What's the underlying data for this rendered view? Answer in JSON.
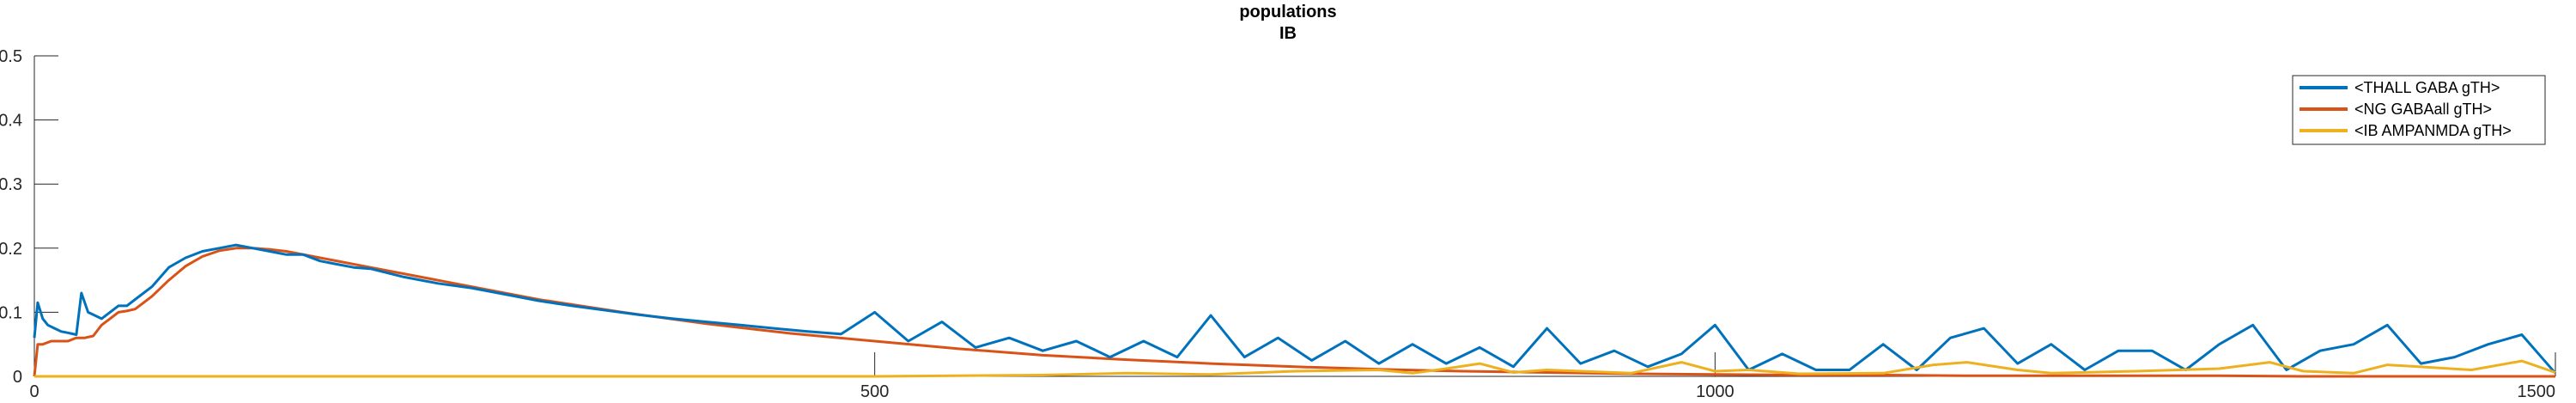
{
  "chart_data": {
    "type": "line",
    "title": "populations",
    "subtitle": "IB",
    "xlabel": "",
    "ylabel": "",
    "xlim": [
      0,
      1500
    ],
    "ylim": [
      0,
      0.5
    ],
    "x_ticks": [
      0,
      500,
      1000,
      1500
    ],
    "y_ticks": [
      0,
      0.1,
      0.2,
      0.3,
      0.4,
      0.5
    ],
    "x_tick_labels": [
      "0",
      "500",
      "1000",
      "1500"
    ],
    "y_tick_labels": [
      "0",
      "0.1",
      "0.2",
      "0.3",
      "0.4",
      "0.5"
    ],
    "grid": false,
    "legend_position": "top-right",
    "series": [
      {
        "name": "<THALL GABA gTH>",
        "color": "#0072BD",
        "x": [
          0,
          2,
          5,
          8,
          12,
          16,
          20,
          25,
          28,
          32,
          36,
          40,
          45,
          50,
          55,
          60,
          70,
          80,
          90,
          100,
          110,
          120,
          130,
          140,
          150,
          160,
          170,
          180,
          190,
          200,
          220,
          240,
          260,
          280,
          300,
          320,
          340,
          360,
          380,
          400,
          420,
          440,
          460,
          480,
          500,
          520,
          540,
          560,
          580,
          600,
          620,
          640,
          660,
          680,
          700,
          720,
          740,
          760,
          780,
          800,
          820,
          840,
          860,
          880,
          900,
          920,
          940,
          960,
          980,
          1000,
          1020,
          1040,
          1060,
          1080,
          1100,
          1120,
          1140,
          1160,
          1180,
          1200,
          1220,
          1240,
          1260,
          1280,
          1300,
          1320,
          1340,
          1360,
          1380,
          1400,
          1420,
          1440,
          1460,
          1480,
          1500
        ],
        "values": [
          0.06,
          0.115,
          0.09,
          0.08,
          0.075,
          0.07,
          0.068,
          0.065,
          0.13,
          0.1,
          0.095,
          0.09,
          0.1,
          0.11,
          0.11,
          0.12,
          0.14,
          0.17,
          0.185,
          0.195,
          0.2,
          0.205,
          0.2,
          0.195,
          0.19,
          0.19,
          0.18,
          0.175,
          0.17,
          0.168,
          0.155,
          0.145,
          0.138,
          0.128,
          0.118,
          0.11,
          0.103,
          0.096,
          0.09,
          0.085,
          0.08,
          0.075,
          0.07,
          0.066,
          0.1,
          0.055,
          0.085,
          0.045,
          0.06,
          0.04,
          0.055,
          0.03,
          0.055,
          0.03,
          0.095,
          0.03,
          0.06,
          0.025,
          0.055,
          0.02,
          0.05,
          0.02,
          0.045,
          0.015,
          0.075,
          0.02,
          0.04,
          0.015,
          0.035,
          0.08,
          0.01,
          0.035,
          0.01,
          0.01,
          0.05,
          0.01,
          0.06,
          0.075,
          0.02,
          0.05,
          0.01,
          0.04,
          0.04,
          0.01,
          0.05,
          0.08,
          0.01,
          0.04,
          0.05,
          0.08,
          0.02,
          0.03,
          0.05,
          0.065,
          0.005
        ]
      },
      {
        "name": "<NG GABAall gTH>",
        "color": "#D95319",
        "x": [
          0,
          2,
          5,
          10,
          15,
          20,
          25,
          30,
          35,
          40,
          45,
          50,
          55,
          60,
          70,
          80,
          90,
          100,
          110,
          120,
          130,
          140,
          150,
          170,
          200,
          250,
          300,
          350,
          400,
          450,
          500,
          550,
          600,
          650,
          700,
          750,
          800,
          850,
          900,
          950,
          1000,
          1050,
          1100,
          1150,
          1200,
          1250,
          1300,
          1350,
          1400,
          1450,
          1500
        ],
        "values": [
          0.0,
          0.05,
          0.05,
          0.055,
          0.055,
          0.055,
          0.06,
          0.06,
          0.063,
          0.08,
          0.09,
          0.1,
          0.102,
          0.105,
          0.125,
          0.15,
          0.172,
          0.187,
          0.196,
          0.2,
          0.2,
          0.198,
          0.195,
          0.185,
          0.17,
          0.145,
          0.12,
          0.1,
          0.082,
          0.067,
          0.055,
          0.043,
          0.033,
          0.026,
          0.02,
          0.015,
          0.011,
          0.008,
          0.006,
          0.004,
          0.003,
          0.002,
          0.002,
          0.001,
          0.001,
          0.001,
          0.001,
          0.0,
          0.0,
          0.0,
          0.0
        ]
      },
      {
        "name": "<IB AMPANMDA gTH>",
        "color": "#EDB120",
        "x": [
          0,
          50,
          100,
          200,
          300,
          400,
          500,
          600,
          650,
          700,
          750,
          800,
          820,
          840,
          860,
          880,
          900,
          950,
          980,
          1000,
          1020,
          1050,
          1100,
          1130,
          1150,
          1180,
          1200,
          1250,
          1300,
          1330,
          1350,
          1380,
          1400,
          1450,
          1480,
          1500
        ],
        "values": [
          0.0,
          0.0,
          0.0,
          0.0,
          0.0,
          0.0,
          0.0,
          0.002,
          0.005,
          0.003,
          0.008,
          0.01,
          0.005,
          0.012,
          0.02,
          0.006,
          0.01,
          0.005,
          0.022,
          0.008,
          0.01,
          0.004,
          0.005,
          0.018,
          0.022,
          0.01,
          0.005,
          0.008,
          0.012,
          0.022,
          0.008,
          0.005,
          0.018,
          0.01,
          0.024,
          0.006
        ]
      }
    ]
  }
}
